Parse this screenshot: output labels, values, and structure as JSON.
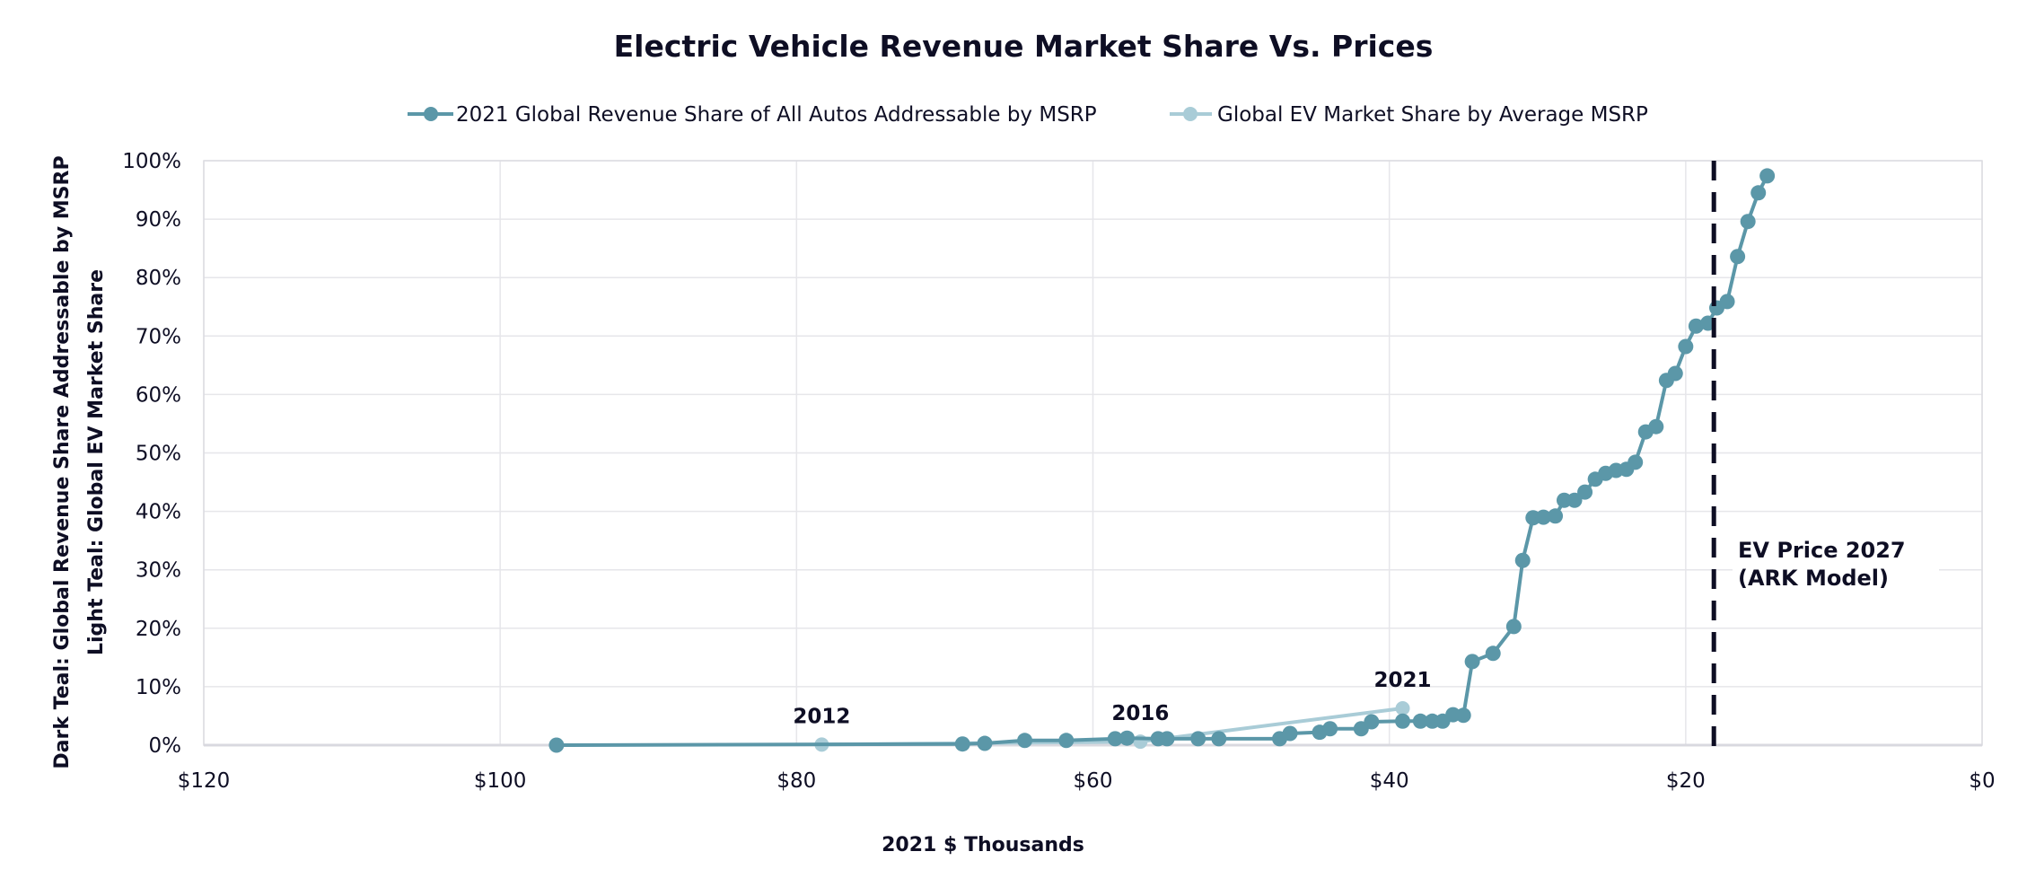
{
  "chart_data": {
    "type": "line",
    "title": "Electric Vehicle Revenue Market Share Vs. Prices",
    "xlabel": "2021 $ Thousands",
    "ylabel_lines": [
      "Dark Teal: Global Revenue Share Addressable by MSRP",
      "Light Teal: Global EV Market Share"
    ],
    "xlim": [
      120,
      0
    ],
    "x_reversed": true,
    "ylim": [
      0,
      100
    ],
    "x_ticks": [
      120,
      100,
      80,
      60,
      40,
      20,
      0
    ],
    "x_tick_labels": [
      "$120",
      "$100",
      "$80",
      "$60",
      "$40",
      "$20",
      "$0"
    ],
    "y_ticks": [
      0,
      10,
      20,
      30,
      40,
      50,
      60,
      70,
      80,
      90,
      100
    ],
    "y_tick_labels": [
      "0%",
      "10%",
      "20%",
      "30%",
      "40%",
      "50%",
      "60%",
      "70%",
      "80%",
      "90%",
      "100%"
    ],
    "grid": true,
    "legend_position": "top-center",
    "series": [
      {
        "name": "2021 Global Revenue Share of All Autos Addressable by MSRP",
        "color": "#5b97a8",
        "x": [
          96.2,
          68.8,
          67.3,
          64.6,
          61.8,
          58.5,
          57.7,
          55.6,
          55.0,
          52.9,
          51.5,
          47.4,
          46.7,
          44.7,
          44.0,
          41.9,
          41.2,
          39.1,
          37.9,
          37.1,
          36.4,
          35.7,
          35.0,
          34.4,
          33.0,
          31.6,
          31.0,
          30.3,
          29.6,
          28.8,
          28.2,
          27.5,
          26.8,
          26.1,
          25.4,
          24.7,
          24.0,
          23.4,
          22.7,
          22.0,
          21.3,
          20.7,
          20.0,
          19.3,
          18.5,
          17.9,
          17.2,
          16.5,
          15.8,
          15.1,
          14.5
        ],
        "y": [
          0.0,
          0.2,
          0.3,
          0.8,
          0.8,
          1.1,
          1.2,
          1.1,
          1.1,
          1.1,
          1.1,
          1.1,
          2.0,
          2.2,
          2.8,
          2.8,
          4.0,
          4.1,
          4.1,
          4.1,
          4.1,
          5.2,
          5.1,
          14.3,
          15.7,
          20.3,
          31.6,
          38.9,
          39.0,
          39.2,
          41.9,
          41.9,
          43.3,
          45.5,
          46.5,
          47.0,
          47.2,
          48.4,
          53.6,
          54.5,
          62.4,
          63.6,
          68.2,
          71.7,
          72.2,
          74.8,
          75.9,
          83.6,
          89.6,
          94.5,
          97.4
        ]
      },
      {
        "name": "Global EV Market Share by Average MSRP",
        "color": "#a9ccd7",
        "x": [
          78.3,
          56.8,
          39.1
        ],
        "y": [
          0.1,
          0.6,
          6.3
        ],
        "point_labels": [
          "2012",
          "2016",
          "2021"
        ]
      }
    ],
    "annotations": [
      {
        "type": "vertical-dashed-line",
        "x": 18.1,
        "color": "#0e0e24",
        "label_lines": [
          "EV Price 2027",
          "(ARK Model)"
        ]
      }
    ]
  }
}
